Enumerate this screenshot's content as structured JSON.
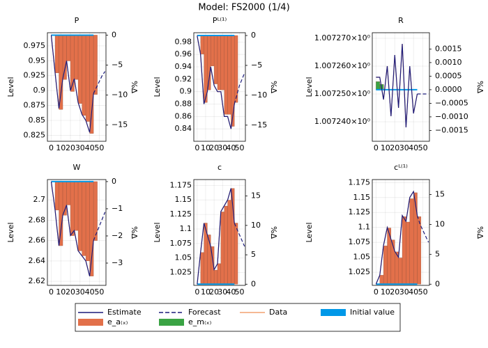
{
  "title": "Model: FS2000  (1/4)",
  "legend": {
    "position": "bottom",
    "items": [
      {
        "name": "Estimate",
        "color": "#1a1a7a",
        "style": "line"
      },
      {
        "name": "Forecast",
        "color": "#1a1a7a",
        "style": "dashed"
      },
      {
        "name": "Data",
        "color": "#f4a070",
        "style": "line"
      },
      {
        "name": "Initial value",
        "color": "#0098e8",
        "style": "bar"
      },
      {
        "name": "e_a₍ₓ₎",
        "color": "#e2704a",
        "style": "bar"
      },
      {
        "name": "e_m₍ₓ₎",
        "color": "#3aa344",
        "style": "bar"
      }
    ]
  },
  "chart_data": [
    {
      "type": "line",
      "title": "P",
      "ylabel": "Level",
      "y2label": "%Δ",
      "xlim": [
        -4,
        57
      ],
      "xticks": [
        0,
        10,
        20,
        30,
        40,
        50
      ],
      "ylim": [
        0.815,
        0.997
      ],
      "yticks": [
        0.825,
        0.85,
        0.875,
        0.9,
        0.925,
        0.95,
        0.975
      ],
      "y2lim": [
        -17.7,
        0.4
      ],
      "y2ticks": [
        0,
        {
          "value": -5,
          "label": "−5"
        },
        {
          "value": -10,
          "label": "−10"
        },
        {
          "value": -15,
          "label": "−15"
        }
      ],
      "x": [
        0,
        4,
        8,
        12,
        16,
        20,
        24,
        28,
        32,
        36,
        40,
        44
      ],
      "estimate": [
        0.993,
        0.93,
        0.87,
        0.92,
        0.95,
        0.9,
        0.92,
        0.88,
        0.86,
        0.85,
        0.83,
        0.895
      ],
      "data": [
        0.993,
        0.93,
        0.87,
        0.92,
        0.95,
        0.9,
        0.92,
        0.88,
        0.86,
        0.85,
        0.83,
        0.895
      ],
      "e_a": [
        0,
        -6.3,
        -12.4,
        -7.4,
        -4.3,
        -9.4,
        -7.4,
        -11.4,
        -13.4,
        -14.4,
        -16.4,
        -9.9
      ],
      "forecast_x": [
        44,
        47,
        50,
        53,
        56
      ],
      "forecast": [
        0.895,
        0.905,
        0.915,
        0.925,
        0.932
      ]
    },
    {
      "type": "line",
      "title": "Pᴸ⁽¹⁾",
      "ylabel": "Level",
      "y2label": "%Δ",
      "xlim": [
        -4,
        57
      ],
      "xticks": [
        0,
        10,
        20,
        30,
        40,
        50
      ],
      "ylim": [
        0.82,
        0.995
      ],
      "yticks": [
        0.84,
        0.86,
        0.88,
        0.9,
        0.92,
        0.94,
        0.96,
        0.98
      ],
      "y2lim": [
        -17.7,
        0.47
      ],
      "y2ticks": [
        0,
        {
          "value": -5,
          "label": "−5"
        },
        {
          "value": -10,
          "label": "−10"
        },
        {
          "value": -15,
          "label": "−15"
        }
      ],
      "x": [
        0,
        4,
        8,
        12,
        16,
        20,
        24,
        28,
        32,
        36,
        40,
        44
      ],
      "estimate": [
        0.99,
        0.96,
        0.88,
        0.9,
        0.94,
        0.91,
        0.9,
        0.9,
        0.86,
        0.86,
        0.84,
        0.88
      ],
      "data": [
        0.99,
        0.96,
        0.88,
        0.9,
        0.94,
        0.91,
        0.9,
        0.9,
        0.86,
        0.86,
        0.84,
        0.88
      ],
      "e_a": [
        -0.1,
        -3.1,
        -11.2,
        -9.1,
        -5.1,
        -8.1,
        -9.1,
        -9.1,
        -13.2,
        -13.2,
        -15.2,
        -11.2
      ],
      "forecast_x": [
        44,
        47,
        50,
        53,
        56
      ],
      "forecast": [
        0.88,
        0.895,
        0.91,
        0.92,
        0.93
      ]
    },
    {
      "type": "line",
      "title": "R",
      "ylabel": "Level",
      "y2label": "%Δ",
      "xlim": [
        -4,
        57
      ],
      "xticks": [
        0,
        10,
        20,
        30,
        40,
        50
      ],
      "ylim": [
        1.007233,
        1.007272
      ],
      "yticks": [
        {
          "value": 1.00724,
          "label": "1.007240×10⁰"
        },
        {
          "value": 1.00725,
          "label": "1.007250×10⁰"
        },
        {
          "value": 1.00726,
          "label": "1.007260×10⁰"
        },
        {
          "value": 1.00727,
          "label": "1.007270×10⁰"
        }
      ],
      "y2lim": [
        -0.0019,
        0.0021
      ],
      "y2ticks": [
        {
          "value": -0.0015,
          "label": "−0.0015"
        },
        {
          "value": -0.001,
          "label": "−0.0010"
        },
        {
          "value": -0.0005,
          "label": "−0.0005"
        },
        {
          "value": 0,
          "label": "0.0000"
        },
        {
          "value": 0.0005,
          "label": "0.0005"
        },
        {
          "value": 0.001,
          "label": "0.0010"
        },
        {
          "value": 0.0015,
          "label": "0.0015"
        }
      ],
      "x": [
        0,
        4,
        8,
        12,
        16,
        20,
        24,
        28,
        32,
        36,
        40,
        44
      ],
      "estimate": [
        1.007256,
        1.007256,
        1.007248,
        1.00726,
        1.007242,
        1.007264,
        1.007245,
        1.007268,
        1.007238,
        1.00726,
        1.007243,
        1.00725
      ],
      "data": [
        1.007256,
        1.007256,
        1.007248,
        1.00726,
        1.007242,
        1.007264,
        1.007245,
        1.007268,
        1.007238,
        1.00726,
        1.007243,
        1.00725
      ],
      "e_m": [
        0.0003,
        0.0002,
        0,
        0,
        0,
        0,
        0,
        0,
        0,
        0,
        0,
        0
      ],
      "forecast_x": [
        44,
        47,
        50,
        53,
        56
      ],
      "forecast": [
        1.00725,
        1.00725,
        1.00725,
        1.00725,
        1.00725
      ]
    },
    {
      "type": "line",
      "title": "W",
      "ylabel": "Level",
      "y2label": "%Δ",
      "xlim": [
        -4,
        57
      ],
      "xticks": [
        0,
        10,
        20,
        30,
        40,
        50
      ],
      "ylim": [
        2.616,
        2.72
      ],
      "yticks": [
        2.62,
        2.64,
        2.66,
        2.68,
        2.7
      ],
      "y2lim": [
        -3.82,
        0.075
      ],
      "y2ticks": [
        0,
        {
          "value": -1,
          "label": "−1"
        },
        {
          "value": -2,
          "label": "−2"
        },
        {
          "value": -3,
          "label": "−3"
        }
      ],
      "x": [
        0,
        4,
        8,
        12,
        16,
        20,
        24,
        28,
        32,
        36,
        40,
        44
      ],
      "estimate": [
        2.718,
        2.69,
        2.655,
        2.685,
        2.695,
        2.665,
        2.67,
        2.65,
        2.645,
        2.64,
        2.625,
        2.66
      ],
      "data": [
        2.718,
        2.69,
        2.655,
        2.685,
        2.695,
        2.665,
        2.67,
        2.65,
        2.645,
        2.64,
        2.625,
        2.66
      ],
      "e_a": [
        0,
        -1.05,
        -2.36,
        -1.24,
        -0.86,
        -1.99,
        -1.8,
        -2.55,
        -2.73,
        -2.92,
        -3.48,
        -2.17
      ],
      "forecast_x": [
        44,
        47,
        50,
        53,
        56
      ],
      "forecast": [
        2.66,
        2.667,
        2.674,
        2.681,
        2.688
      ]
    },
    {
      "type": "line",
      "title": "c",
      "ylabel": "Level",
      "y2label": "%Δ",
      "xlim": [
        -4,
        57
      ],
      "xticks": [
        0,
        10,
        20,
        30,
        40,
        50
      ],
      "ylim": [
        1.003,
        1.185
      ],
      "yticks": [
        1.025,
        1.05,
        1.075,
        1.1,
        1.125,
        1.15,
        1.175
      ],
      "y2lim": [
        -0.2,
        17.8
      ],
      "y2ticks": [
        0,
        5,
        10,
        15
      ],
      "x": [
        0,
        4,
        8,
        12,
        16,
        20,
        24,
        28,
        32,
        36,
        40,
        44
      ],
      "estimate": [
        1.005,
        1.06,
        1.11,
        1.09,
        1.07,
        1.03,
        1.04,
        1.13,
        1.14,
        1.15,
        1.17,
        1.11
      ],
      "data": [
        1.005,
        1.06,
        1.11,
        1.09,
        1.07,
        1.03,
        1.04,
        1.13,
        1.14,
        1.15,
        1.17,
        1.11
      ],
      "e_a": [
        0,
        5.4,
        10.4,
        8.4,
        6.4,
        2.4,
        3.5,
        12.3,
        13.3,
        14.3,
        16.3,
        10.4
      ],
      "forecast_x": [
        44,
        47,
        50,
        53,
        56
      ],
      "forecast": [
        1.11,
        1.1,
        1.09,
        1.08,
        1.07
      ]
    },
    {
      "type": "line",
      "title": "cᴸ⁽¹⁾",
      "ylabel": "Level",
      "y2label": "%Δ",
      "xlim": [
        -4,
        57
      ],
      "xticks": [
        0,
        10,
        20,
        30,
        40,
        50
      ],
      "ylim": [
        1.003,
        1.18
      ],
      "yticks": [
        1.025,
        1.05,
        1.075,
        1.1,
        1.125,
        1.15,
        1.175
      ],
      "y2lim": [
        -0.2,
        17.5
      ],
      "y2ticks": [
        0,
        5,
        10,
        15
      ],
      "x": [
        0,
        4,
        8,
        12,
        16,
        20,
        24,
        28,
        32,
        36,
        40,
        44
      ],
      "estimate": [
        1.005,
        1.02,
        1.07,
        1.1,
        1.08,
        1.06,
        1.05,
        1.12,
        1.11,
        1.15,
        1.16,
        1.12
      ],
      "data": [
        1.005,
        1.02,
        1.07,
        1.1,
        1.08,
        1.06,
        1.05,
        1.12,
        1.11,
        1.15,
        1.16,
        1.12
      ],
      "e_a": [
        0,
        1.5,
        6.4,
        9.4,
        7.4,
        5.4,
        4.4,
        11.3,
        10.4,
        14.3,
        15.3,
        11.3
      ],
      "forecast_x": [
        44,
        47,
        50,
        53,
        56
      ],
      "forecast": [
        1.12,
        1.105,
        1.095,
        1.085,
        1.075
      ]
    }
  ]
}
